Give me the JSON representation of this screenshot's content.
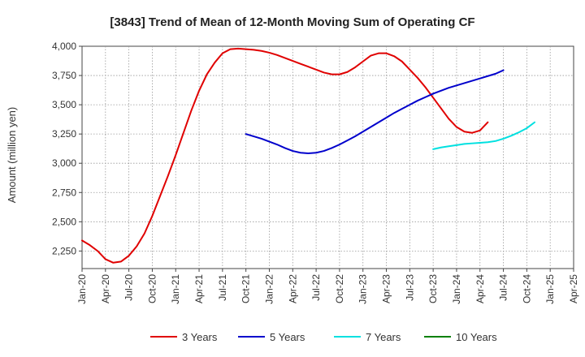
{
  "chart_data": {
    "type": "line",
    "title": "[3843]  Trend of Mean of 12-Month Moving Sum of Operating CF",
    "xlabel": "",
    "ylabel": "Amount (million yen)",
    "ylim": [
      2100,
      4000
    ],
    "y_ticks": [
      2250,
      2500,
      2750,
      3000,
      3250,
      3500,
      3750,
      4000
    ],
    "y_tick_labels": [
      "2,250",
      "2,500",
      "2,750",
      "3,000",
      "3,250",
      "3,500",
      "3,750",
      "4,000"
    ],
    "x_ticks": [
      "Jan-20",
      "Apr-20",
      "Jul-20",
      "Oct-20",
      "Jan-21",
      "Apr-21",
      "Jul-21",
      "Oct-21",
      "Jan-22",
      "Apr-22",
      "Jul-22",
      "Oct-22",
      "Jan-23",
      "Apr-23",
      "Jul-23",
      "Oct-23",
      "Jan-24",
      "Apr-24",
      "Jul-24",
      "Oct-24",
      "Jan-25",
      "Apr-25"
    ],
    "x_start": "Jan-20",
    "grid": true,
    "legend_position": "bottom",
    "series": [
      {
        "name": "3 Years",
        "color": "#e00000",
        "start_index": 0,
        "values": [
          2340,
          2300,
          2250,
          2180,
          2150,
          2160,
          2210,
          2290,
          2400,
          2550,
          2720,
          2890,
          3070,
          3260,
          3450,
          3620,
          3760,
          3860,
          3940,
          3975,
          3980,
          3975,
          3970,
          3960,
          3945,
          3925,
          3900,
          3875,
          3850,
          3825,
          3800,
          3775,
          3760,
          3760,
          3780,
          3820,
          3870,
          3920,
          3940,
          3940,
          3915,
          3870,
          3800,
          3730,
          3650,
          3560,
          3470,
          3380,
          3310,
          3270,
          3260,
          3280,
          3350
        ]
      },
      {
        "name": "5 Years",
        "color": "#0000cc",
        "start_index": 21,
        "values": [
          3250,
          3230,
          3210,
          3185,
          3160,
          3130,
          3105,
          3090,
          3085,
          3090,
          3105,
          3130,
          3160,
          3195,
          3230,
          3270,
          3310,
          3350,
          3390,
          3430,
          3465,
          3500,
          3535,
          3565,
          3595,
          3620,
          3645,
          3665,
          3685,
          3705,
          3725,
          3745,
          3765,
          3795
        ]
      },
      {
        "name": "7 Years",
        "color": "#00e0e0",
        "start_index": 45,
        "values": [
          3120,
          3135,
          3145,
          3155,
          3165,
          3170,
          3175,
          3180,
          3190,
          3210,
          3235,
          3265,
          3300,
          3350
        ]
      },
      {
        "name": "10 Years",
        "color": "#008000",
        "start_index": 0,
        "values": []
      }
    ]
  }
}
